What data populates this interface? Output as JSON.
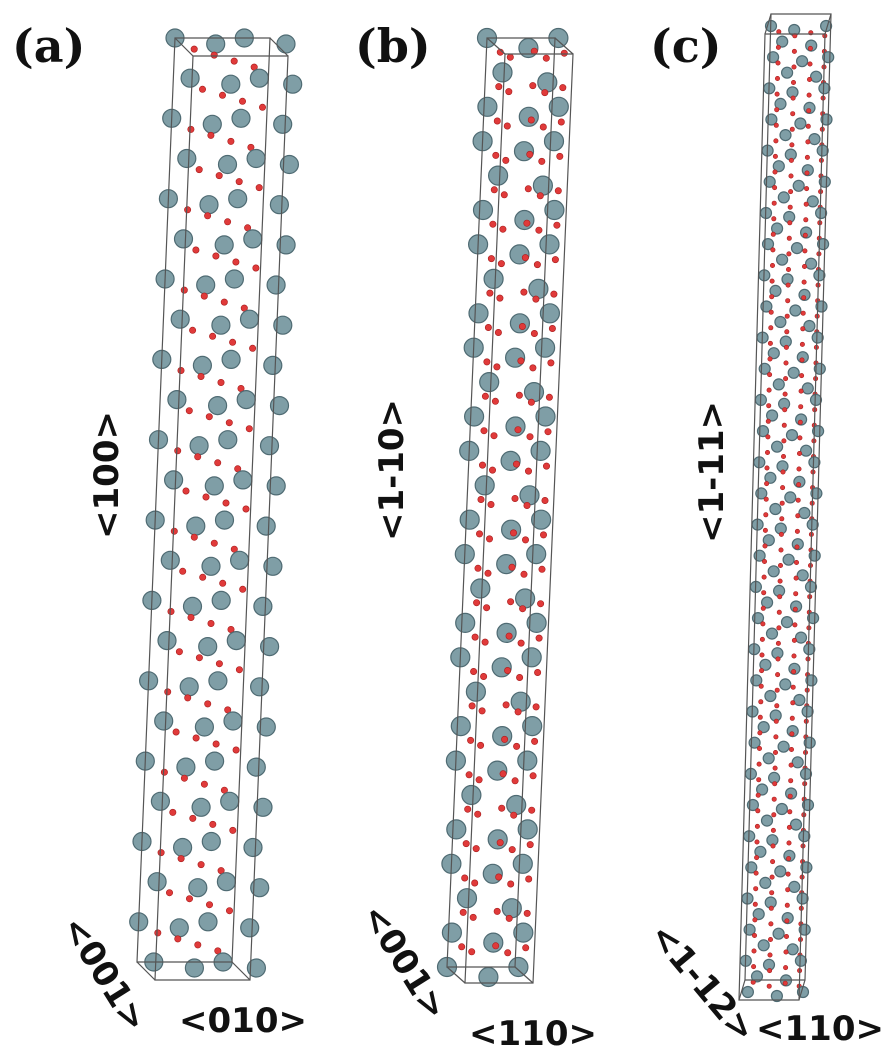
{
  "figure": {
    "colors": {
      "metal_atom": "#7f9ea6",
      "metal_atom_edge": "#4f6b73",
      "oxygen_atom": "#e03a3a",
      "cell_edge": "#555555"
    },
    "panels": [
      {
        "id": "a",
        "label": "(a)",
        "vertical_axis": "<100>",
        "bottom_left_axis": "<001>",
        "bottom_right_axis": "<010>"
      },
      {
        "id": "b",
        "label": "(b)",
        "vertical_axis": "<1-10>",
        "bottom_left_axis": "<001>",
        "bottom_right_axis": "<110>"
      },
      {
        "id": "c",
        "label": "(c)",
        "vertical_axis": "<1-11>",
        "bottom_left_axis": "<1-12>",
        "bottom_right_axis": "<110>"
      }
    ]
  }
}
